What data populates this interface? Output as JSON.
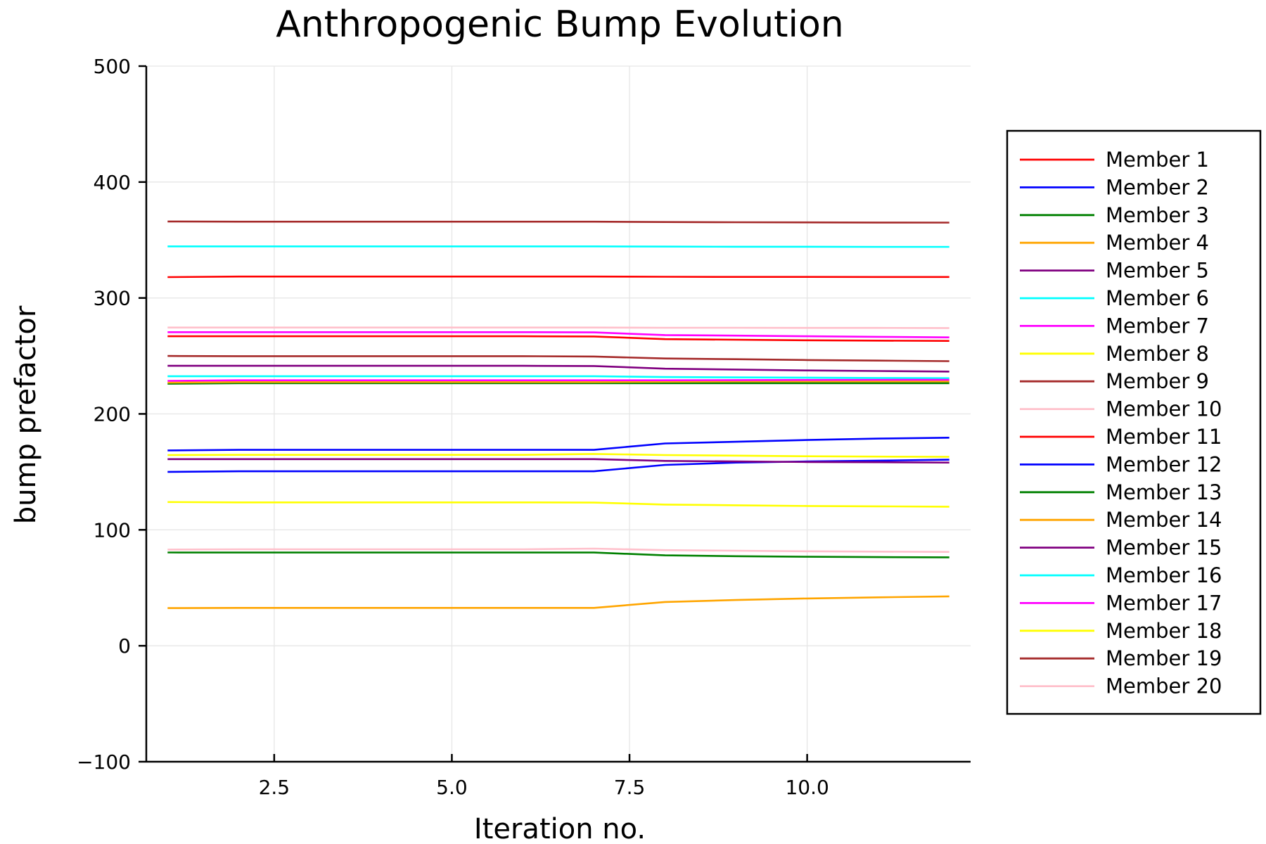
{
  "chart_data": {
    "type": "line",
    "title": "Anthropogenic Bump Evolution",
    "xlabel": "Iteration no.",
    "ylabel": "bump prefactor",
    "xlim": [
      0.7,
      12.3
    ],
    "ylim": [
      -100,
      500
    ],
    "xticks": [
      2.5,
      5.0,
      7.5,
      10.0
    ],
    "xtick_labels": [
      "2.5",
      "5.0",
      "7.5",
      "10.0"
    ],
    "yticks": [
      -100,
      0,
      100,
      200,
      300,
      400,
      500
    ],
    "ytick_labels": [
      "−100",
      "0",
      "100",
      "200",
      "300",
      "400",
      "500"
    ],
    "grid": true,
    "legend_position": "outer-right",
    "x": [
      1,
      2,
      3,
      4,
      5,
      6,
      7,
      8,
      9,
      10,
      11,
      12
    ],
    "series": [
      {
        "name": "Member 1",
        "color": "#ff0000",
        "values": [
          318,
          318.5,
          318.5,
          318.5,
          318.5,
          318.5,
          318.5,
          318.3,
          318.2,
          318.2,
          318.1,
          318.1
        ]
      },
      {
        "name": "Member 2",
        "color": "#0000ff",
        "values": [
          150,
          150.5,
          150.5,
          150.5,
          150.5,
          150.5,
          150.5,
          156,
          158,
          159,
          159.7,
          160.5
        ]
      },
      {
        "name": "Member 3",
        "color": "#008000",
        "values": [
          80.5,
          80.4,
          80.4,
          80.4,
          80.4,
          80.4,
          80.4,
          78,
          77.3,
          76.8,
          76.5,
          76.3
        ]
      },
      {
        "name": "Member 4",
        "color": "#ffa500",
        "values": [
          32.5,
          32.7,
          32.7,
          32.7,
          32.7,
          32.7,
          32.7,
          37.8,
          39.5,
          40.8,
          41.8,
          42.6
        ]
      },
      {
        "name": "Member 5",
        "color": "#800080",
        "values": [
          161,
          161,
          161,
          161,
          161,
          161,
          161,
          159.5,
          159,
          158.5,
          158.3,
          158
        ]
      },
      {
        "name": "Member 6",
        "color": "#00ffff",
        "values": [
          344.5,
          344.5,
          344.5,
          344.5,
          344.5,
          344.5,
          344.5,
          344.3,
          344.2,
          344.2,
          344.1,
          344.1
        ]
      },
      {
        "name": "Member 7",
        "color": "#ff00ff",
        "values": [
          270.5,
          270.5,
          270.5,
          270.5,
          270.5,
          270.5,
          270.3,
          268,
          267.5,
          267,
          266.5,
          266
        ]
      },
      {
        "name": "Member 8",
        "color": "#ffff00",
        "values": [
          164.5,
          164.7,
          164.7,
          164.7,
          164.7,
          164.7,
          165.5,
          164.5,
          164,
          163.5,
          163.2,
          163
        ]
      },
      {
        "name": "Member 9",
        "color": "#a52a2a",
        "values": [
          366,
          365.8,
          365.8,
          365.8,
          365.8,
          365.8,
          365.8,
          365.5,
          365.3,
          365.2,
          365.1,
          365
        ]
      },
      {
        "name": "Member 10",
        "color": "#ffc0cb",
        "values": [
          274.5,
          274.5,
          274.5,
          274.5,
          274.5,
          274.5,
          274.5,
          274.3,
          274.3,
          274.2,
          274.2,
          274.1
        ]
      },
      {
        "name": "Member 11",
        "color": "#ff0000",
        "values": [
          267,
          267,
          267,
          267,
          267,
          267,
          266.8,
          264.5,
          264,
          263.5,
          263.2,
          263
        ]
      },
      {
        "name": "Member 12",
        "color": "#0000ff",
        "values": [
          168.5,
          169,
          169,
          169,
          169,
          169,
          169,
          174.5,
          176,
          177.5,
          178.7,
          179.5
        ]
      },
      {
        "name": "Member 13",
        "color": "#008000",
        "values": [
          226,
          226.5,
          226.5,
          226.5,
          226.5,
          226.5,
          226.5,
          226.5,
          226.5,
          226.5,
          226.5,
          226.5
        ]
      },
      {
        "name": "Member 14",
        "color": "#ffa500",
        "values": [
          227,
          227.5,
          227.5,
          227.5,
          227.5,
          227.5,
          227.5,
          227.8,
          228,
          228,
          228,
          228
        ]
      },
      {
        "name": "Member 15",
        "color": "#800080",
        "values": [
          241.5,
          241.5,
          241.5,
          241.5,
          241.5,
          241.5,
          241.3,
          239,
          238.3,
          237.5,
          237,
          236.5
        ]
      },
      {
        "name": "Member 16",
        "color": "#00ffff",
        "values": [
          232.5,
          232.5,
          232.5,
          232.5,
          232.5,
          232.5,
          232.5,
          231.8,
          231.5,
          231.3,
          231,
          230.8
        ]
      },
      {
        "name": "Member 17",
        "color": "#ff00ff",
        "values": [
          228.5,
          229,
          229,
          229,
          229,
          229,
          229,
          229,
          229.2,
          229.3,
          229.4,
          229.5
        ]
      },
      {
        "name": "Member 18",
        "color": "#ffff00",
        "values": [
          124,
          123.7,
          123.7,
          123.7,
          123.7,
          123.7,
          123.5,
          121.8,
          121.2,
          120.6,
          120.3,
          120
        ]
      },
      {
        "name": "Member 19",
        "color": "#a52a2a",
        "values": [
          250,
          249.8,
          249.8,
          249.8,
          249.8,
          249.8,
          249.5,
          247.8,
          247.2,
          246.5,
          246,
          245.5
        ]
      },
      {
        "name": "Member 20",
        "color": "#ffc0cb",
        "values": [
          83,
          83.2,
          83.2,
          83.2,
          83.2,
          83.2,
          83.8,
          82.5,
          82,
          81.5,
          81.2,
          81
        ]
      }
    ]
  }
}
